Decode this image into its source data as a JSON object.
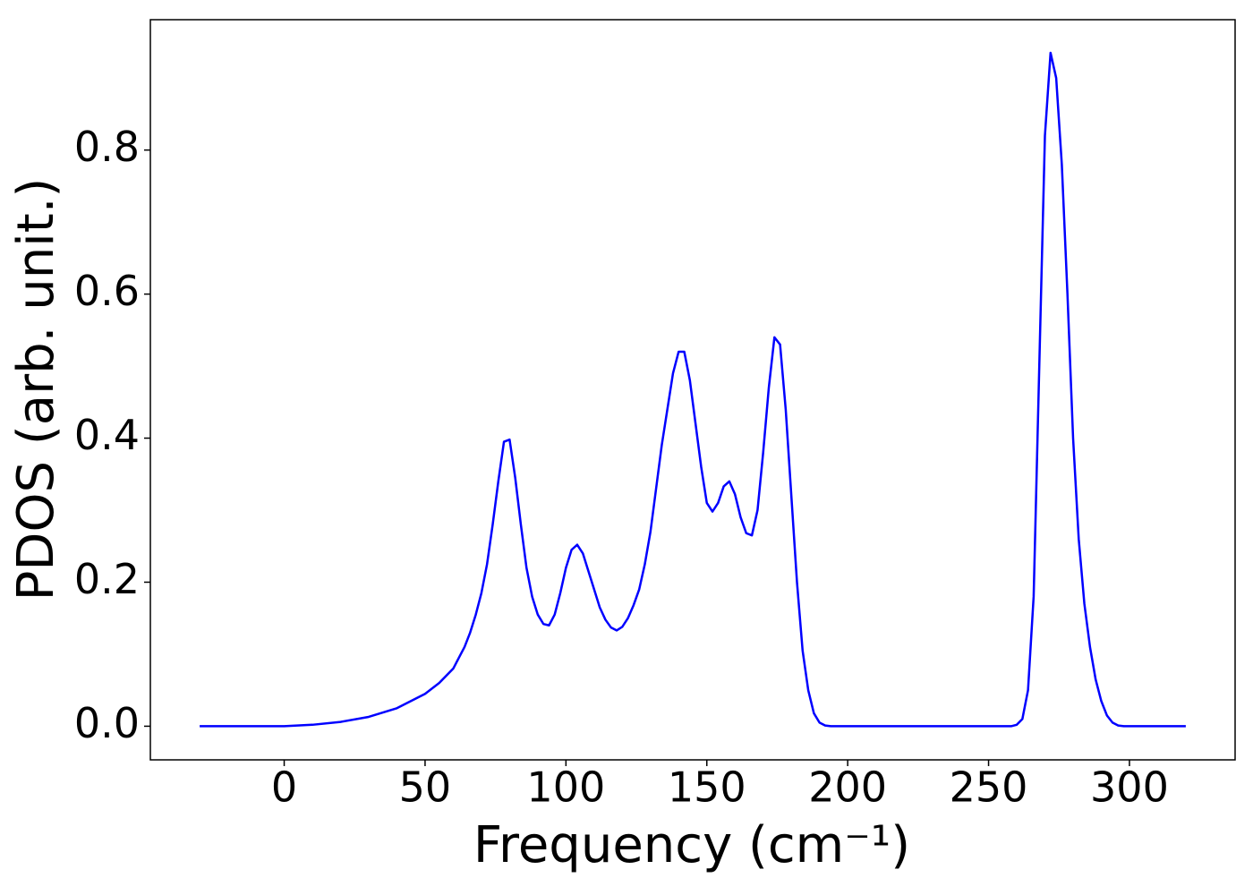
{
  "chart_data": {
    "type": "line",
    "xlabel": "Frequency (cm⁻¹)",
    "ylabel": "PDOS (arb. unit.)",
    "x": [
      -30,
      -20,
      -10,
      0,
      10,
      20,
      30,
      40,
      50,
      55,
      60,
      62,
      64,
      66,
      68,
      70,
      72,
      74,
      76,
      78,
      80,
      82,
      84,
      86,
      88,
      90,
      92,
      94,
      96,
      98,
      100,
      102,
      104,
      106,
      108,
      110,
      112,
      114,
      116,
      118,
      120,
      122,
      124,
      126,
      128,
      130,
      132,
      134,
      136,
      138,
      140,
      142,
      144,
      146,
      148,
      150,
      152,
      154,
      156,
      158,
      160,
      162,
      164,
      166,
      168,
      170,
      172,
      174,
      176,
      178,
      180,
      182,
      184,
      186,
      188,
      190,
      192,
      194,
      196,
      200,
      210,
      220,
      230,
      240,
      250,
      256,
      258,
      260,
      262,
      264,
      266,
      268,
      270,
      272,
      274,
      276,
      278,
      280,
      282,
      284,
      286,
      288,
      290,
      292,
      294,
      296,
      298,
      300,
      305,
      310,
      320
    ],
    "series": [
      {
        "color": "#0000ff",
        "values": [
          0,
          0,
          0,
          0,
          0.002,
          0.006,
          0.013,
          0.025,
          0.045,
          0.06,
          0.08,
          0.095,
          0.11,
          0.13,
          0.155,
          0.185,
          0.225,
          0.28,
          0.34,
          0.395,
          0.398,
          0.345,
          0.28,
          0.22,
          0.18,
          0.155,
          0.142,
          0.14,
          0.155,
          0.185,
          0.22,
          0.245,
          0.252,
          0.24,
          0.215,
          0.19,
          0.165,
          0.148,
          0.137,
          0.133,
          0.138,
          0.15,
          0.168,
          0.19,
          0.225,
          0.27,
          0.33,
          0.39,
          0.44,
          0.49,
          0.52,
          0.52,
          0.48,
          0.42,
          0.36,
          0.31,
          0.298,
          0.31,
          0.333,
          0.34,
          0.322,
          0.29,
          0.268,
          0.265,
          0.3,
          0.38,
          0.47,
          0.54,
          0.53,
          0.44,
          0.32,
          0.2,
          0.105,
          0.05,
          0.018,
          0.005,
          0.001,
          0,
          0,
          0,
          0,
          0,
          0,
          0,
          0,
          0,
          0,
          0.002,
          0.01,
          0.05,
          0.18,
          0.5,
          0.82,
          0.935,
          0.9,
          0.78,
          0.6,
          0.4,
          0.26,
          0.17,
          0.11,
          0.065,
          0.035,
          0.015,
          0.005,
          0.001,
          0,
          0,
          0,
          0,
          0
        ]
      }
    ],
    "xlim": [
      -47.5,
      337.5
    ],
    "ylim": [
      -0.0467,
      0.981
    ],
    "xticks": [
      0,
      50,
      100,
      150,
      200,
      250,
      300
    ],
    "yticks": [
      {
        "value": 0,
        "label": "0.0"
      },
      0.2,
      0.4,
      0.6,
      0.8
    ],
    "grid": false
  }
}
